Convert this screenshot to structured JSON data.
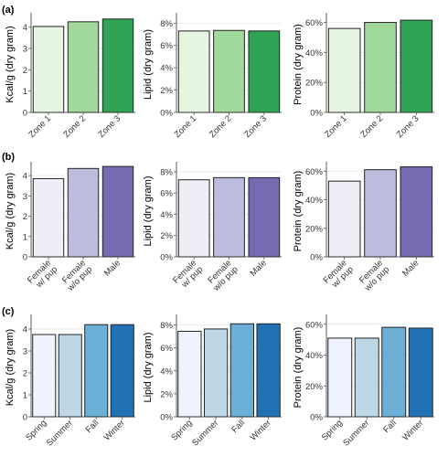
{
  "panel_labels": [
    "(a)",
    "(b)",
    "(c)"
  ],
  "chart_data": [
    {
      "type": "bar",
      "panel": "(a)",
      "ylabel": "Kcal/g (dry gram)",
      "categories": [
        "Zone 1",
        "Zone 2",
        "Zone 3"
      ],
      "values": [
        4.03,
        4.25,
        4.38
      ],
      "ylim": [
        0,
        4.5
      ],
      "yticks": [
        0,
        1,
        2,
        3,
        4
      ],
      "tick_format": "num",
      "colors": [
        "#e5f5e0",
        "#a1d99b",
        "#31a354"
      ]
    },
    {
      "type": "bar",
      "panel": "(a)",
      "ylabel": "Lipid (dry gram)",
      "categories": [
        "Zone 1",
        "Zone 2",
        "Zone 3"
      ],
      "values": [
        7.3,
        7.35,
        7.3
      ],
      "ylim": [
        0,
        8.6
      ],
      "yticks": [
        0,
        2,
        4,
        6,
        8
      ],
      "tick_format": "pct",
      "colors": [
        "#e5f5e0",
        "#a1d99b",
        "#31a354"
      ]
    },
    {
      "type": "bar",
      "panel": "(a)",
      "ylabel": "Protein (dry gram)",
      "categories": [
        "Zone 1",
        "Zone 2",
        "Zone 3"
      ],
      "values": [
        56,
        60,
        61.5
      ],
      "ylim": [
        0,
        64
      ],
      "yticks": [
        0,
        20,
        40,
        60
      ],
      "tick_format": "pct",
      "colors": [
        "#e5f5e0",
        "#a1d99b",
        "#31a354"
      ]
    },
    {
      "type": "bar",
      "panel": "(b)",
      "ylabel": "Kcal/g (dry gram)",
      "categories": [
        "Female\nw/ pup",
        "Female\nw/o pup",
        "Male"
      ],
      "values": [
        3.85,
        4.35,
        4.45
      ],
      "ylim": [
        0,
        4.5
      ],
      "yticks": [
        0,
        1,
        2,
        3,
        4
      ],
      "tick_format": "num",
      "colors": [
        "#efedf5",
        "#bcbddc",
        "#756bb1"
      ]
    },
    {
      "type": "bar",
      "panel": "(b)",
      "ylabel": "Lipid (dry gram)",
      "categories": [
        "Female\nw/ pup",
        "Female\nw/o pup",
        "Male"
      ],
      "values": [
        7.25,
        7.45,
        7.45
      ],
      "ylim": [
        0,
        8.6
      ],
      "yticks": [
        0,
        2,
        4,
        6,
        8
      ],
      "tick_format": "pct",
      "colors": [
        "#efedf5",
        "#bcbddc",
        "#756bb1"
      ]
    },
    {
      "type": "bar",
      "panel": "(b)",
      "ylabel": "Protein (dry gram)",
      "categories": [
        "Female\nw/ pup",
        "Female\nw/o pup",
        "Male"
      ],
      "values": [
        53,
        61,
        63
      ],
      "ylim": [
        0,
        64
      ],
      "yticks": [
        0,
        20,
        40,
        60
      ],
      "tick_format": "pct",
      "colors": [
        "#efedf5",
        "#bcbddc",
        "#756bb1"
      ]
    },
    {
      "type": "bar",
      "panel": "(c)",
      "ylabel": "Kcal/g (dry gram)",
      "categories": [
        "Spring",
        "Summer",
        "Fall",
        "Winter"
      ],
      "values": [
        3.75,
        3.75,
        4.2,
        4.2
      ],
      "ylim": [
        0,
        4.5
      ],
      "yticks": [
        0,
        1,
        2,
        3,
        4
      ],
      "tick_format": "num",
      "colors": [
        "#eff3ff",
        "#bdd7e7",
        "#6baed6",
        "#2171b5"
      ]
    },
    {
      "type": "bar",
      "panel": "(c)",
      "ylabel": "Lipid (dry gram)",
      "categories": [
        "Spring",
        "Summer",
        "Fall",
        "Winter"
      ],
      "values": [
        7.45,
        7.65,
        8.1,
        8.1
      ],
      "ylim": [
        0,
        8.6
      ],
      "yticks": [
        0,
        2,
        4,
        6,
        8
      ],
      "tick_format": "pct",
      "colors": [
        "#eff3ff",
        "#bdd7e7",
        "#6baed6",
        "#2171b5"
      ]
    },
    {
      "type": "bar",
      "panel": "(c)",
      "ylabel": "Protein (dry gram)",
      "categories": [
        "Spring",
        "Summer",
        "Fall",
        "Winter"
      ],
      "values": [
        51,
        51,
        58,
        57.5
      ],
      "ylim": [
        0,
        64
      ],
      "yticks": [
        0,
        20,
        40,
        60
      ],
      "tick_format": "pct",
      "colors": [
        "#eff3ff",
        "#bdd7e7",
        "#6baed6",
        "#2171b5"
      ]
    }
  ]
}
